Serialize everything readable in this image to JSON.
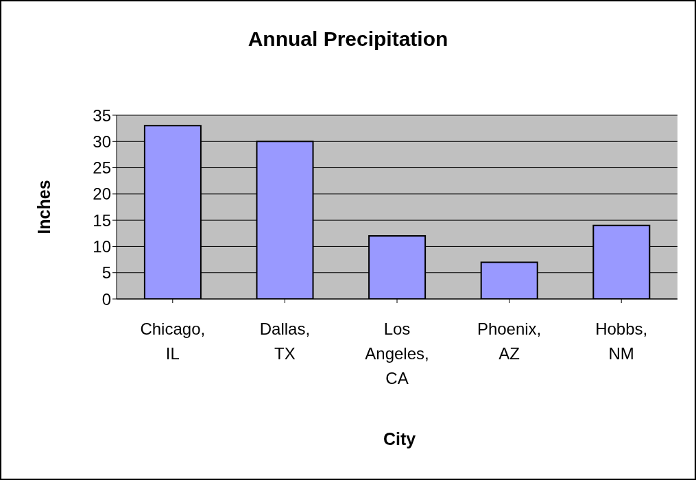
{
  "chart_data": {
    "type": "bar",
    "title": "Annual Precipitation",
    "xlabel": "City",
    "ylabel": "Inches",
    "categories": [
      "Chicago, IL",
      "Dallas, TX",
      "Los Angeles, CA",
      "Phoenix, AZ",
      "Hobbs, NM"
    ],
    "values": [
      33,
      30,
      12,
      7,
      14
    ],
    "color": "#9999ff",
    "ylim": [
      0,
      35
    ],
    "yticks": [
      0,
      5,
      10,
      15,
      20,
      25,
      30,
      35
    ],
    "grid": "y"
  }
}
